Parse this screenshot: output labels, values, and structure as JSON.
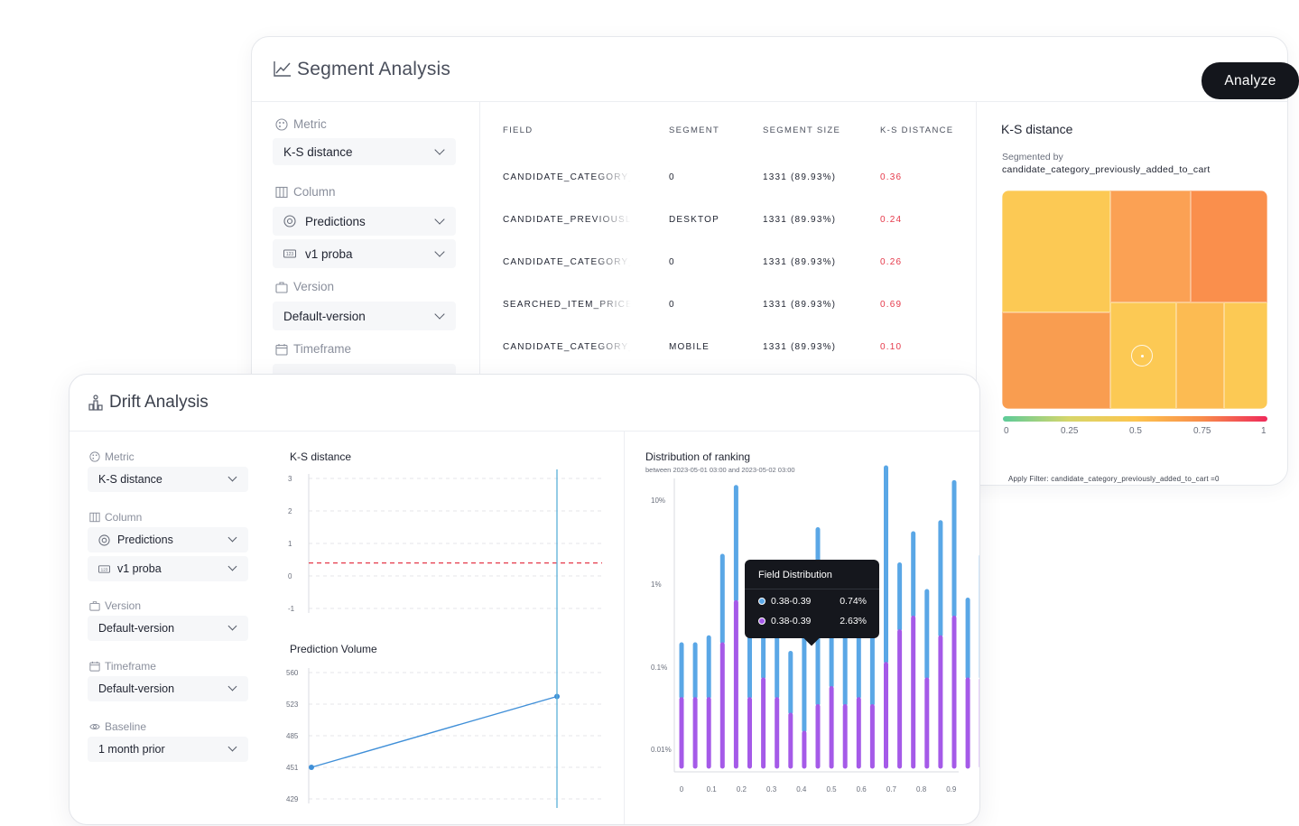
{
  "segment": {
    "title": "Segment Analysis",
    "analyze_label": "Analyze",
    "metric_label": "Metric",
    "metric_value": "K-S distance",
    "column_label": "Column",
    "column_value_1": "Predictions",
    "column_value_2": "v1 proba",
    "version_label": "Version",
    "version_value": "Default-version",
    "timeframe_label": "Timeframe",
    "table": {
      "headers": [
        "FIELD",
        "SEGMENT",
        "SEGMENT SIZE",
        "K-S DISTANCE"
      ],
      "rows": [
        {
          "field": "CANDIDATE_CATEGORY_",
          "segment": "0",
          "size": "1331 (89.93%)",
          "ks": "0.36"
        },
        {
          "field": "CANDIDATE_PREVIOUSLY",
          "segment": "DESKTOP",
          "size": "1331 (89.93%)",
          "ks": "0.24"
        },
        {
          "field": "CANDIDATE_CATEGORY_",
          "segment": "0",
          "size": "1331 (89.93%)",
          "ks": "0.26"
        },
        {
          "field": "SEARCHED_ITEM_PRICE_",
          "segment": "0",
          "size": "1331 (89.93%)",
          "ks": "0.69"
        },
        {
          "field": "CANDIDATE_CATEGORY_",
          "segment": "MOBILE",
          "size": "1331 (89.93%)",
          "ks": "0.10"
        }
      ]
    },
    "ks_panel": {
      "title": "K-S distance",
      "segmented_by_label": "Segmented by",
      "segmented_by_field": "candidate_category_previously_added_to_cart",
      "scale_labels": [
        "0",
        "0.25",
        "0.5",
        "0.75",
        "1"
      ],
      "apply_filter": "Apply Filter: candidate_category_previously_added_to_cart =0",
      "colors": [
        "#fcc954",
        "#fba154",
        "#fa8f4c",
        "#f99d50",
        "#fcc954",
        "#fcbb52",
        "#fcc954"
      ]
    }
  },
  "drift": {
    "title": "Drift Analysis",
    "metric_label": "Metric",
    "metric_value": "K-S distance",
    "column_label": "Column",
    "column_value_1": "Predictions",
    "column_value_2": "v1 proba",
    "version_label": "Version",
    "version_value": "Default-version",
    "timeframe_label": "Timeframe",
    "timeframe_value": "Default-version",
    "baseline_label": "Baseline",
    "baseline_value": "1 month prior",
    "ks_chart_title": "K-S distance",
    "volume_chart_title": "Prediction Volume",
    "dist_chart_title": "Distribution of ranking",
    "dist_chart_sub": "between 2023-05-01 03:00 and 2023-05-02 03:00",
    "tooltip": {
      "title": "Field Distribution",
      "rows": [
        {
          "label": "0.38-0.39",
          "value": "0.74%",
          "color": "#5aa7e6"
        },
        {
          "label": "0.38-0.39",
          "value": "2.63%",
          "color": "#a55ae8"
        }
      ]
    }
  },
  "chart_data": [
    {
      "type": "line",
      "title": "K-S distance",
      "y_ticks": [
        "3",
        "2",
        "1",
        "0",
        "-1"
      ],
      "ylim": [
        -1,
        3
      ],
      "threshold": 0.4,
      "grid": true
    },
    {
      "type": "line",
      "title": "Prediction Volume",
      "y_ticks": [
        "560",
        "523",
        "485",
        "451",
        "429"
      ],
      "series": [
        {
          "values": [
            451,
            532
          ]
        }
      ],
      "grid": true
    },
    {
      "type": "bar",
      "title": "Distribution of ranking",
      "y_ticks": [
        "10%",
        "1%",
        "0.1%",
        "0.01%"
      ],
      "y_scale": "log",
      "x_ticks": [
        "0",
        "0.1",
        "0.2",
        "0.3",
        "0.4",
        "0.5",
        "0.6",
        "0.7",
        "0.8",
        "0.9"
      ],
      "series": [
        {
          "color": "#5aa7e6",
          "values": [
            0.25,
            0.25,
            0.3,
            2.5,
            15,
            0.6,
            2.0,
            1.5,
            0.2,
            0.4,
            5,
            2.0,
            0.35,
            0.55,
            0.7,
            25,
            2.0,
            4.5,
            1.0,
            6,
            17,
            0.8,
            2.5,
            13,
            4.5
          ]
        },
        {
          "color": "#a55ae8",
          "values": [
            0.06,
            0.06,
            0.06,
            0.25,
            0.75,
            0.06,
            0.1,
            0.06,
            0.04,
            0.025,
            0.05,
            0.08,
            0.05,
            0.06,
            0.05,
            0.15,
            0.35,
            0.5,
            0.1,
            0.3,
            0.5,
            0.1,
            0.1,
            0.2,
            0.1
          ]
        }
      ],
      "highlight": "0.38-0.39"
    }
  ]
}
